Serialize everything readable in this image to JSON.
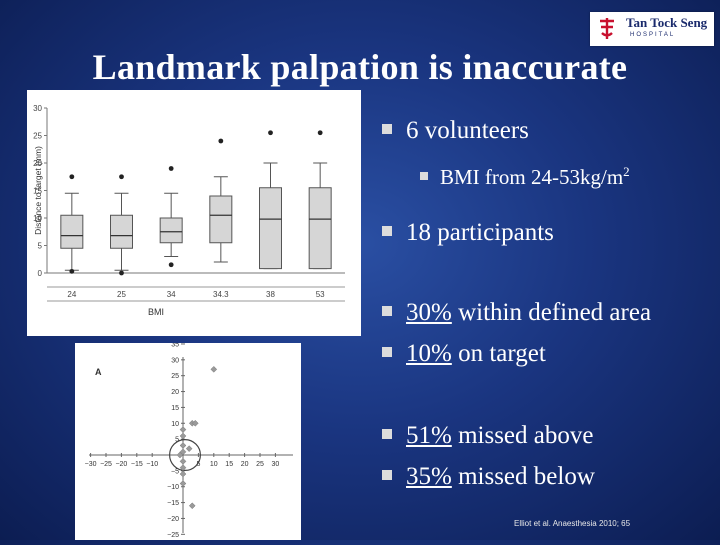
{
  "logo": {
    "name": "Tan Tock Seng",
    "sub": "HOSPITAL"
  },
  "title": "Landmark palpation is inaccurate",
  "bullets": {
    "b1": "6 volunteers",
    "b1_sub": "BMI from 24-53kg/m",
    "b1_sub_sup": "2",
    "b2": "18 participants",
    "b3_pct": "30%",
    "b3_rest": " within defined area",
    "b4_pct": "10%",
    "b4_rest": " on target",
    "b5_pct": "51%",
    "b5_rest": " missed above",
    "b6_pct": "35%",
    "b6_rest": " missed below"
  },
  "citation": "Elliot et al. Anaesthesia 2010; 65",
  "chart_data": [
    {
      "type": "box",
      "ylabel": "Distance to target (mm)",
      "xlabel": "BMI",
      "ylim": [
        0,
        30
      ],
      "yticks": [
        "0",
        "5",
        "10",
        "15",
        "20",
        "25",
        "30"
      ],
      "categories": [
        "24",
        "25",
        "34",
        "34.3",
        "38",
        "53"
      ],
      "boxes": [
        {
          "min": 0.5,
          "q1": 4.5,
          "median": 6.8,
          "q3": 10.5,
          "max": 14.5,
          "outliers": [
            17.5,
            0.3
          ]
        },
        {
          "min": 0.5,
          "q1": 4.5,
          "median": 6.8,
          "q3": 10.5,
          "max": 14.5,
          "outliers": [
            17.5,
            0.0
          ]
        },
        {
          "min": 3.0,
          "q1": 5.5,
          "median": 7.5,
          "q3": 10.0,
          "max": 14.5,
          "outliers": [
            19.0,
            1.5
          ]
        },
        {
          "min": 2.0,
          "q1": 5.5,
          "median": 10.5,
          "q3": 14.0,
          "max": 17.5,
          "outliers": [
            24.0
          ]
        },
        {
          "min": 0.8,
          "q1": 0.8,
          "median": 9.8,
          "q3": 15.5,
          "max": 20.0,
          "outliers": [
            25.5
          ]
        },
        {
          "min": 0.8,
          "q1": 0.8,
          "median": 9.8,
          "q3": 15.5,
          "max": 20.0,
          "outliers": [
            25.5
          ]
        }
      ]
    },
    {
      "type": "scatter",
      "panel_label": "A",
      "xlim": [
        -30,
        30
      ],
      "ylim": [
        -30,
        30
      ],
      "xticks": [
        "−30",
        "−25",
        "−20",
        "−15",
        "−10",
        "5",
        "10",
        "15",
        "20",
        "25",
        "30"
      ],
      "yticks": [
        "35",
        "30",
        "25",
        "20",
        "15",
        "10",
        "5",
        "−5",
        "−10",
        "−15",
        "−20",
        "−25",
        "−30"
      ],
      "points": [
        {
          "x": 10,
          "y": 27
        },
        {
          "x": 3,
          "y": 10
        },
        {
          "x": 4,
          "y": 10
        },
        {
          "x": 0,
          "y": 8
        },
        {
          "x": 0,
          "y": 6
        },
        {
          "x": 0,
          "y": 3
        },
        {
          "x": 0,
          "y": 1
        },
        {
          "x": 2,
          "y": 2
        },
        {
          "x": -1,
          "y": 0
        },
        {
          "x": 0,
          "y": -2
        },
        {
          "x": 0,
          "y": -4
        },
        {
          "x": 0,
          "y": -6
        },
        {
          "x": 0,
          "y": -9
        },
        {
          "x": 3,
          "y": -16
        }
      ],
      "target_circle_radius": 5
    }
  ]
}
